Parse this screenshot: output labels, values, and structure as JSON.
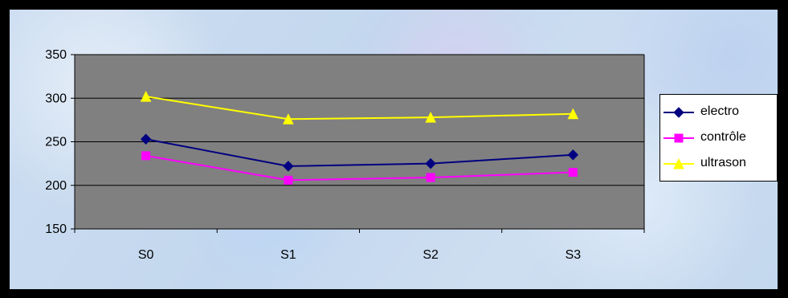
{
  "chart_data": {
    "type": "line",
    "categories": [
      "S0",
      "S1",
      "S2",
      "S3"
    ],
    "series": [
      {
        "name": "electro",
        "values": [
          253,
          222,
          225,
          235
        ],
        "color": "#000080",
        "marker": "diamond"
      },
      {
        "name": "contrôle",
        "values": [
          234,
          206,
          209,
          215
        ],
        "color": "#ff00ff",
        "marker": "square"
      },
      {
        "name": "ultrason",
        "values": [
          302,
          276,
          278,
          282
        ],
        "color": "#ffff00",
        "marker": "triangle"
      }
    ],
    "y_ticks": [
      "150",
      "200",
      "250",
      "300",
      "350"
    ],
    "ylim": [
      150,
      350
    ],
    "y_step": 50,
    "grid": true,
    "legend_position": "right",
    "plot_background": "#808080",
    "gridline_color": "#000000",
    "frame_color": "#000000"
  }
}
